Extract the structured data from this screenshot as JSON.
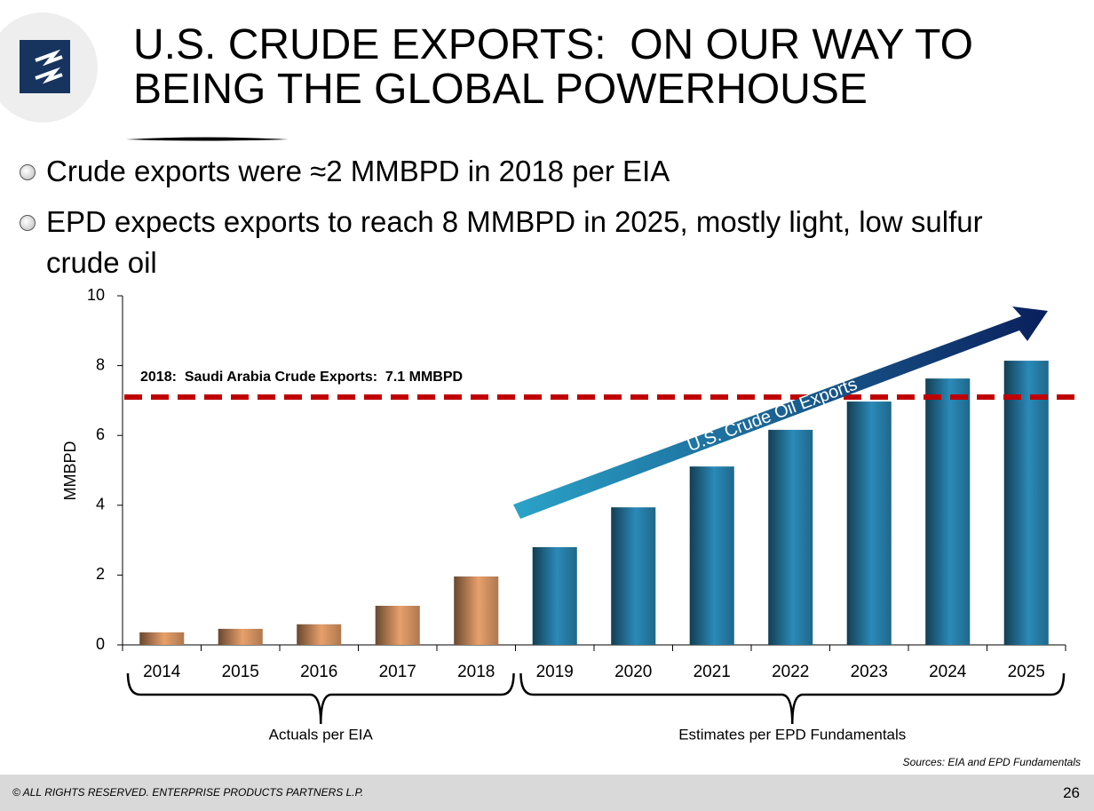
{
  "slide": {
    "title": [
      "U.S. CRUDE EXPORTS:  ON OUR WAY TO",
      "BEING THE GLOBAL POWERHOUSE"
    ],
    "bullets": [
      "Crude exports were ≈2 MMBPD in 2018 per EIA",
      "EPD expects exports to reach 8 MMBPD in 2025, mostly light, low sulfur crude oil"
    ],
    "footer": "© ALL RIGHTS RESERVED. ENTERPRISE PRODUCTS PARTNERS L.P.",
    "page_number": "26"
  },
  "chart_data": {
    "type": "bar",
    "y_label": "MMBPD",
    "categories": [
      "2014",
      "2015",
      "2016",
      "2017",
      "2018",
      "2019",
      "2020",
      "2021",
      "2022",
      "2023",
      "2024",
      "2025"
    ],
    "series": [
      {
        "name": "Actuals per EIA",
        "color": "#e8a06a",
        "values": [
          0.36,
          0.46,
          0.59,
          1.12,
          1.96,
          null,
          null,
          null,
          null,
          null,
          null,
          null
        ]
      },
      {
        "name": "Estimates per EPD Fundamentals",
        "color": "#2a8ab8",
        "values": [
          null,
          null,
          null,
          null,
          null,
          2.8,
          3.94,
          5.11,
          6.16,
          6.97,
          7.63,
          8.14
        ]
      }
    ],
    "ylim": [
      0,
      10
    ],
    "yticks": [
      0,
      2,
      4,
      6,
      8,
      10
    ],
    "reference_line": {
      "value": 7.1,
      "label": "2018:  Saudi Arabia Crude Exports:  7.1 MMBPD",
      "color": "#c00000"
    },
    "annotation": "U.S. Crude Oil Exports",
    "source": "Sources:  EIA and EPD Fundamentals"
  }
}
